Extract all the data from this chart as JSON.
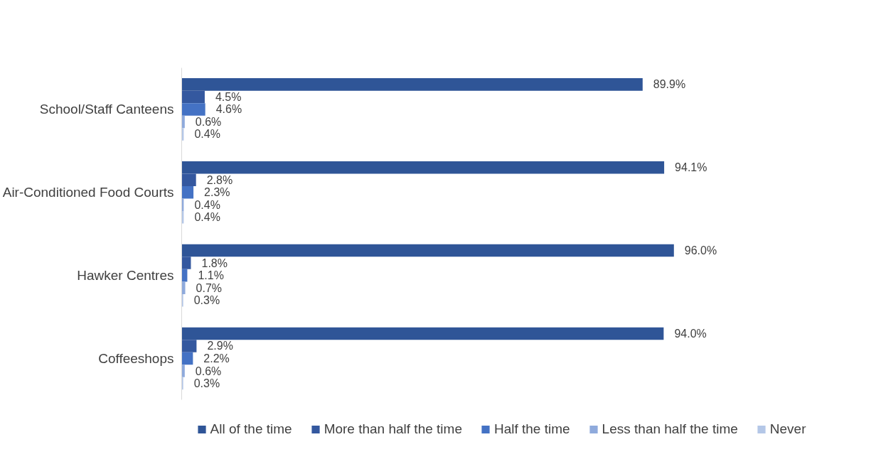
{
  "chart_data": {
    "type": "bar",
    "orientation": "horizontal",
    "categories": [
      "School/Staff Canteens",
      "Air-Conditioned Food Courts",
      "Hawker Centres",
      "Coffeeshops"
    ],
    "series": [
      {
        "name": "All of the time",
        "color": "#2f5597",
        "values": [
          89.9,
          94.1,
          96.0,
          94.0
        ],
        "value_labels": [
          "89.9%",
          "94.1%",
          "96.0%",
          "94.0%"
        ]
      },
      {
        "name": "More than half the time",
        "color": "#34589f",
        "values": [
          4.5,
          2.8,
          1.8,
          2.9
        ],
        "value_labels": [
          "4.5%",
          "2.8%",
          "1.8%",
          "2.9%"
        ]
      },
      {
        "name": "Half the time",
        "color": "#4472c4",
        "values": [
          4.6,
          2.3,
          1.1,
          2.2
        ],
        "value_labels": [
          "4.6%",
          "2.3%",
          "1.1%",
          "2.2%"
        ]
      },
      {
        "name": "Less than half the time",
        "color": "#8faadc",
        "values": [
          0.6,
          0.4,
          0.7,
          0.6
        ],
        "value_labels": [
          "0.6%",
          "0.4%",
          "0.7%",
          "0.6%"
        ]
      },
      {
        "name": "Never",
        "color": "#b4c7e7",
        "values": [
          0.4,
          0.4,
          0.3,
          0.3
        ],
        "value_labels": [
          "0.4%",
          "0.4%",
          "0.3%",
          "0.3%"
        ]
      }
    ],
    "legend": "bottom",
    "grid": false
  }
}
